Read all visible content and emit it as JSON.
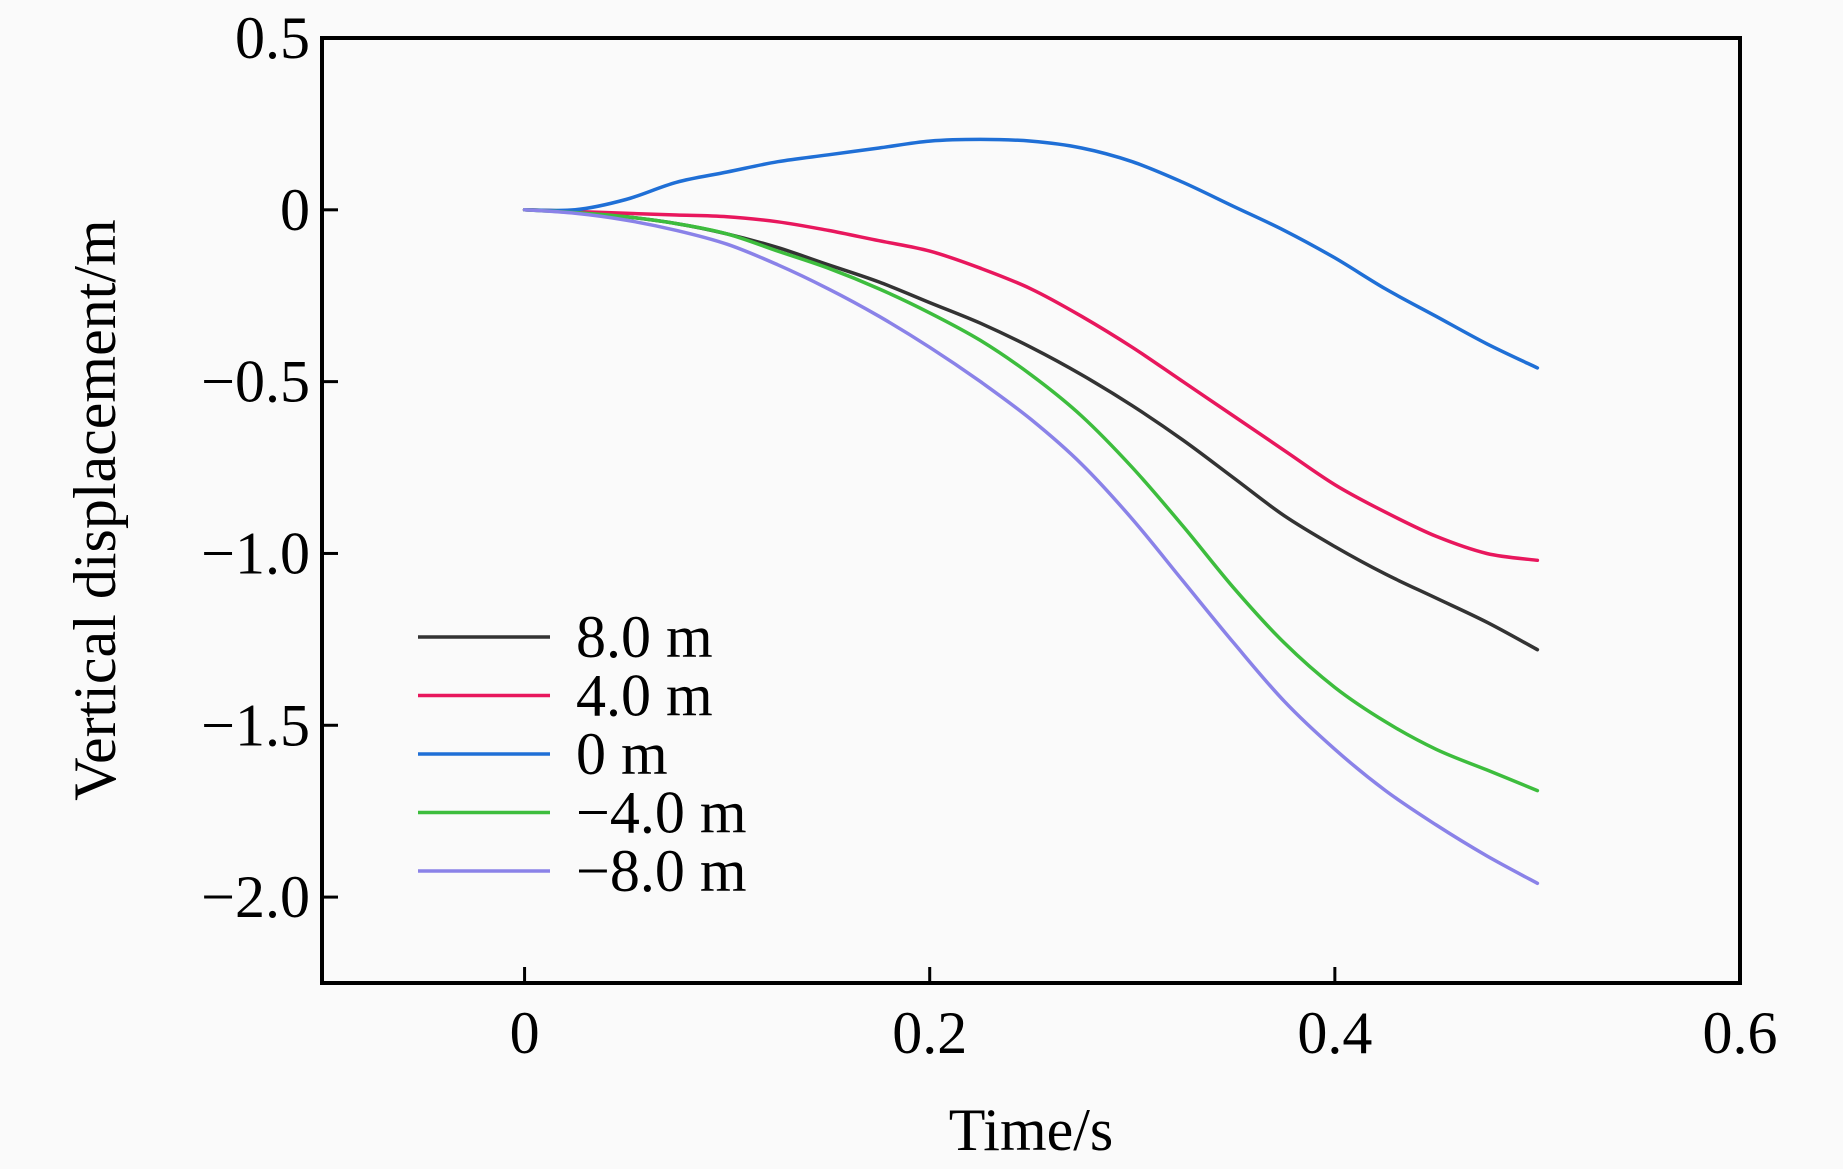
{
  "chart_data": {
    "type": "line",
    "title": "",
    "xlabel": "Time/s",
    "ylabel": "Vertical displacement/m",
    "xlim": [
      -0.1,
      0.6
    ],
    "ylim": [
      -2.25,
      0.5
    ],
    "xticks": [
      0,
      0.2,
      0.4,
      0.6
    ],
    "xtick_labels": [
      "0",
      "0.2",
      "0.4",
      "0.6"
    ],
    "yticks": [
      0.5,
      0,
      -0.5,
      -1.0,
      -1.5,
      -2.0
    ],
    "ytick_labels": [
      "0.5",
      "0",
      "−0.5",
      "−1.0",
      "−1.5",
      "−2.0"
    ],
    "grid": false,
    "legend_position": "bottom-left",
    "x": [
      0,
      0.025,
      0.05,
      0.075,
      0.1,
      0.125,
      0.15,
      0.175,
      0.2,
      0.225,
      0.25,
      0.275,
      0.3,
      0.325,
      0.35,
      0.375,
      0.4,
      0.425,
      0.45,
      0.475,
      0.5
    ],
    "series": [
      {
        "name": "8.0 m",
        "legend_label": "8.0 m",
        "color": "#333333",
        "values": [
          0,
          -0.005,
          -0.02,
          -0.04,
          -0.07,
          -0.11,
          -0.16,
          -0.21,
          -0.27,
          -0.33,
          -0.4,
          -0.48,
          -0.57,
          -0.67,
          -0.78,
          -0.89,
          -0.98,
          -1.06,
          -1.13,
          -1.2,
          -1.28
        ]
      },
      {
        "name": "4.0 m",
        "legend_label": "4.0 m",
        "color": "#e8175d",
        "values": [
          0,
          -0.005,
          -0.01,
          -0.015,
          -0.02,
          -0.035,
          -0.06,
          -0.09,
          -0.12,
          -0.17,
          -0.23,
          -0.31,
          -0.4,
          -0.5,
          -0.6,
          -0.7,
          -0.8,
          -0.88,
          -0.95,
          -1.0,
          -1.02
        ]
      },
      {
        "name": "0 m",
        "legend_label": "0 m",
        "color": "#1f6fd6",
        "values": [
          0,
          0.0,
          0.03,
          0.08,
          0.11,
          0.14,
          0.16,
          0.18,
          0.2,
          0.205,
          0.2,
          0.18,
          0.14,
          0.08,
          0.01,
          -0.06,
          -0.14,
          -0.23,
          -0.31,
          -0.39,
          -0.46
        ]
      },
      {
        "name": "-4.0 m",
        "legend_label": "−4.0 m",
        "color": "#3dbd3d",
        "values": [
          0,
          -0.008,
          -0.02,
          -0.04,
          -0.07,
          -0.12,
          -0.17,
          -0.23,
          -0.3,
          -0.38,
          -0.48,
          -0.6,
          -0.75,
          -0.92,
          -1.1,
          -1.26,
          -1.39,
          -1.49,
          -1.57,
          -1.63,
          -1.69
        ]
      },
      {
        "name": "-8.0 m",
        "legend_label": "−8.0 m",
        "color": "#8a82e8",
        "values": [
          0,
          -0.01,
          -0.03,
          -0.06,
          -0.1,
          -0.16,
          -0.23,
          -0.31,
          -0.4,
          -0.5,
          -0.61,
          -0.74,
          -0.9,
          -1.08,
          -1.26,
          -1.43,
          -1.57,
          -1.69,
          -1.79,
          -1.88,
          -1.96
        ]
      }
    ]
  }
}
